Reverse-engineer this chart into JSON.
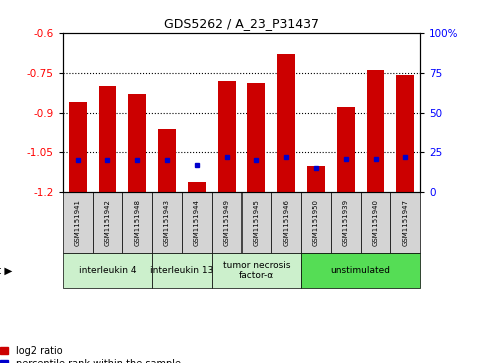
{
  "title": "GDS5262 / A_23_P31437",
  "samples": [
    "GSM1151941",
    "GSM1151942",
    "GSM1151948",
    "GSM1151943",
    "GSM1151944",
    "GSM1151949",
    "GSM1151945",
    "GSM1151946",
    "GSM1151950",
    "GSM1151939",
    "GSM1151940",
    "GSM1151947"
  ],
  "log2_ratio": [
    -0.86,
    -0.8,
    -0.83,
    -0.96,
    -1.16,
    -0.78,
    -0.79,
    -0.68,
    -1.1,
    -0.88,
    -0.74,
    -0.76
  ],
  "percentile_rank": [
    20,
    20,
    20,
    20,
    17,
    22,
    20,
    22,
    15,
    21,
    21,
    22
  ],
  "agents": [
    {
      "label": "interleukin 4",
      "start": 0,
      "end": 3,
      "color": "#ccf0cc"
    },
    {
      "label": "interleukin 13",
      "start": 3,
      "end": 5,
      "color": "#ccf0cc"
    },
    {
      "label": "tumor necrosis\nfactor-α",
      "start": 5,
      "end": 8,
      "color": "#ccf0cc"
    },
    {
      "label": "unstimulated",
      "start": 8,
      "end": 12,
      "color": "#55dd55"
    }
  ],
  "ylim_left": [
    -1.2,
    -0.6
  ],
  "ylim_right": [
    0,
    100
  ],
  "yticks_left": [
    -1.2,
    -1.05,
    -0.9,
    -0.75,
    -0.6
  ],
  "yticks_right": [
    0,
    25,
    50,
    75,
    100
  ],
  "bar_color": "#cc0000",
  "percentile_color": "#0000cc",
  "sample_box_color": "#d4d4d4",
  "plot_bg_color": "#ffffff",
  "gridline_color": "#000000",
  "legend_log2_label": "log2 ratio",
  "legend_pct_label": "percentile rank within the sample"
}
